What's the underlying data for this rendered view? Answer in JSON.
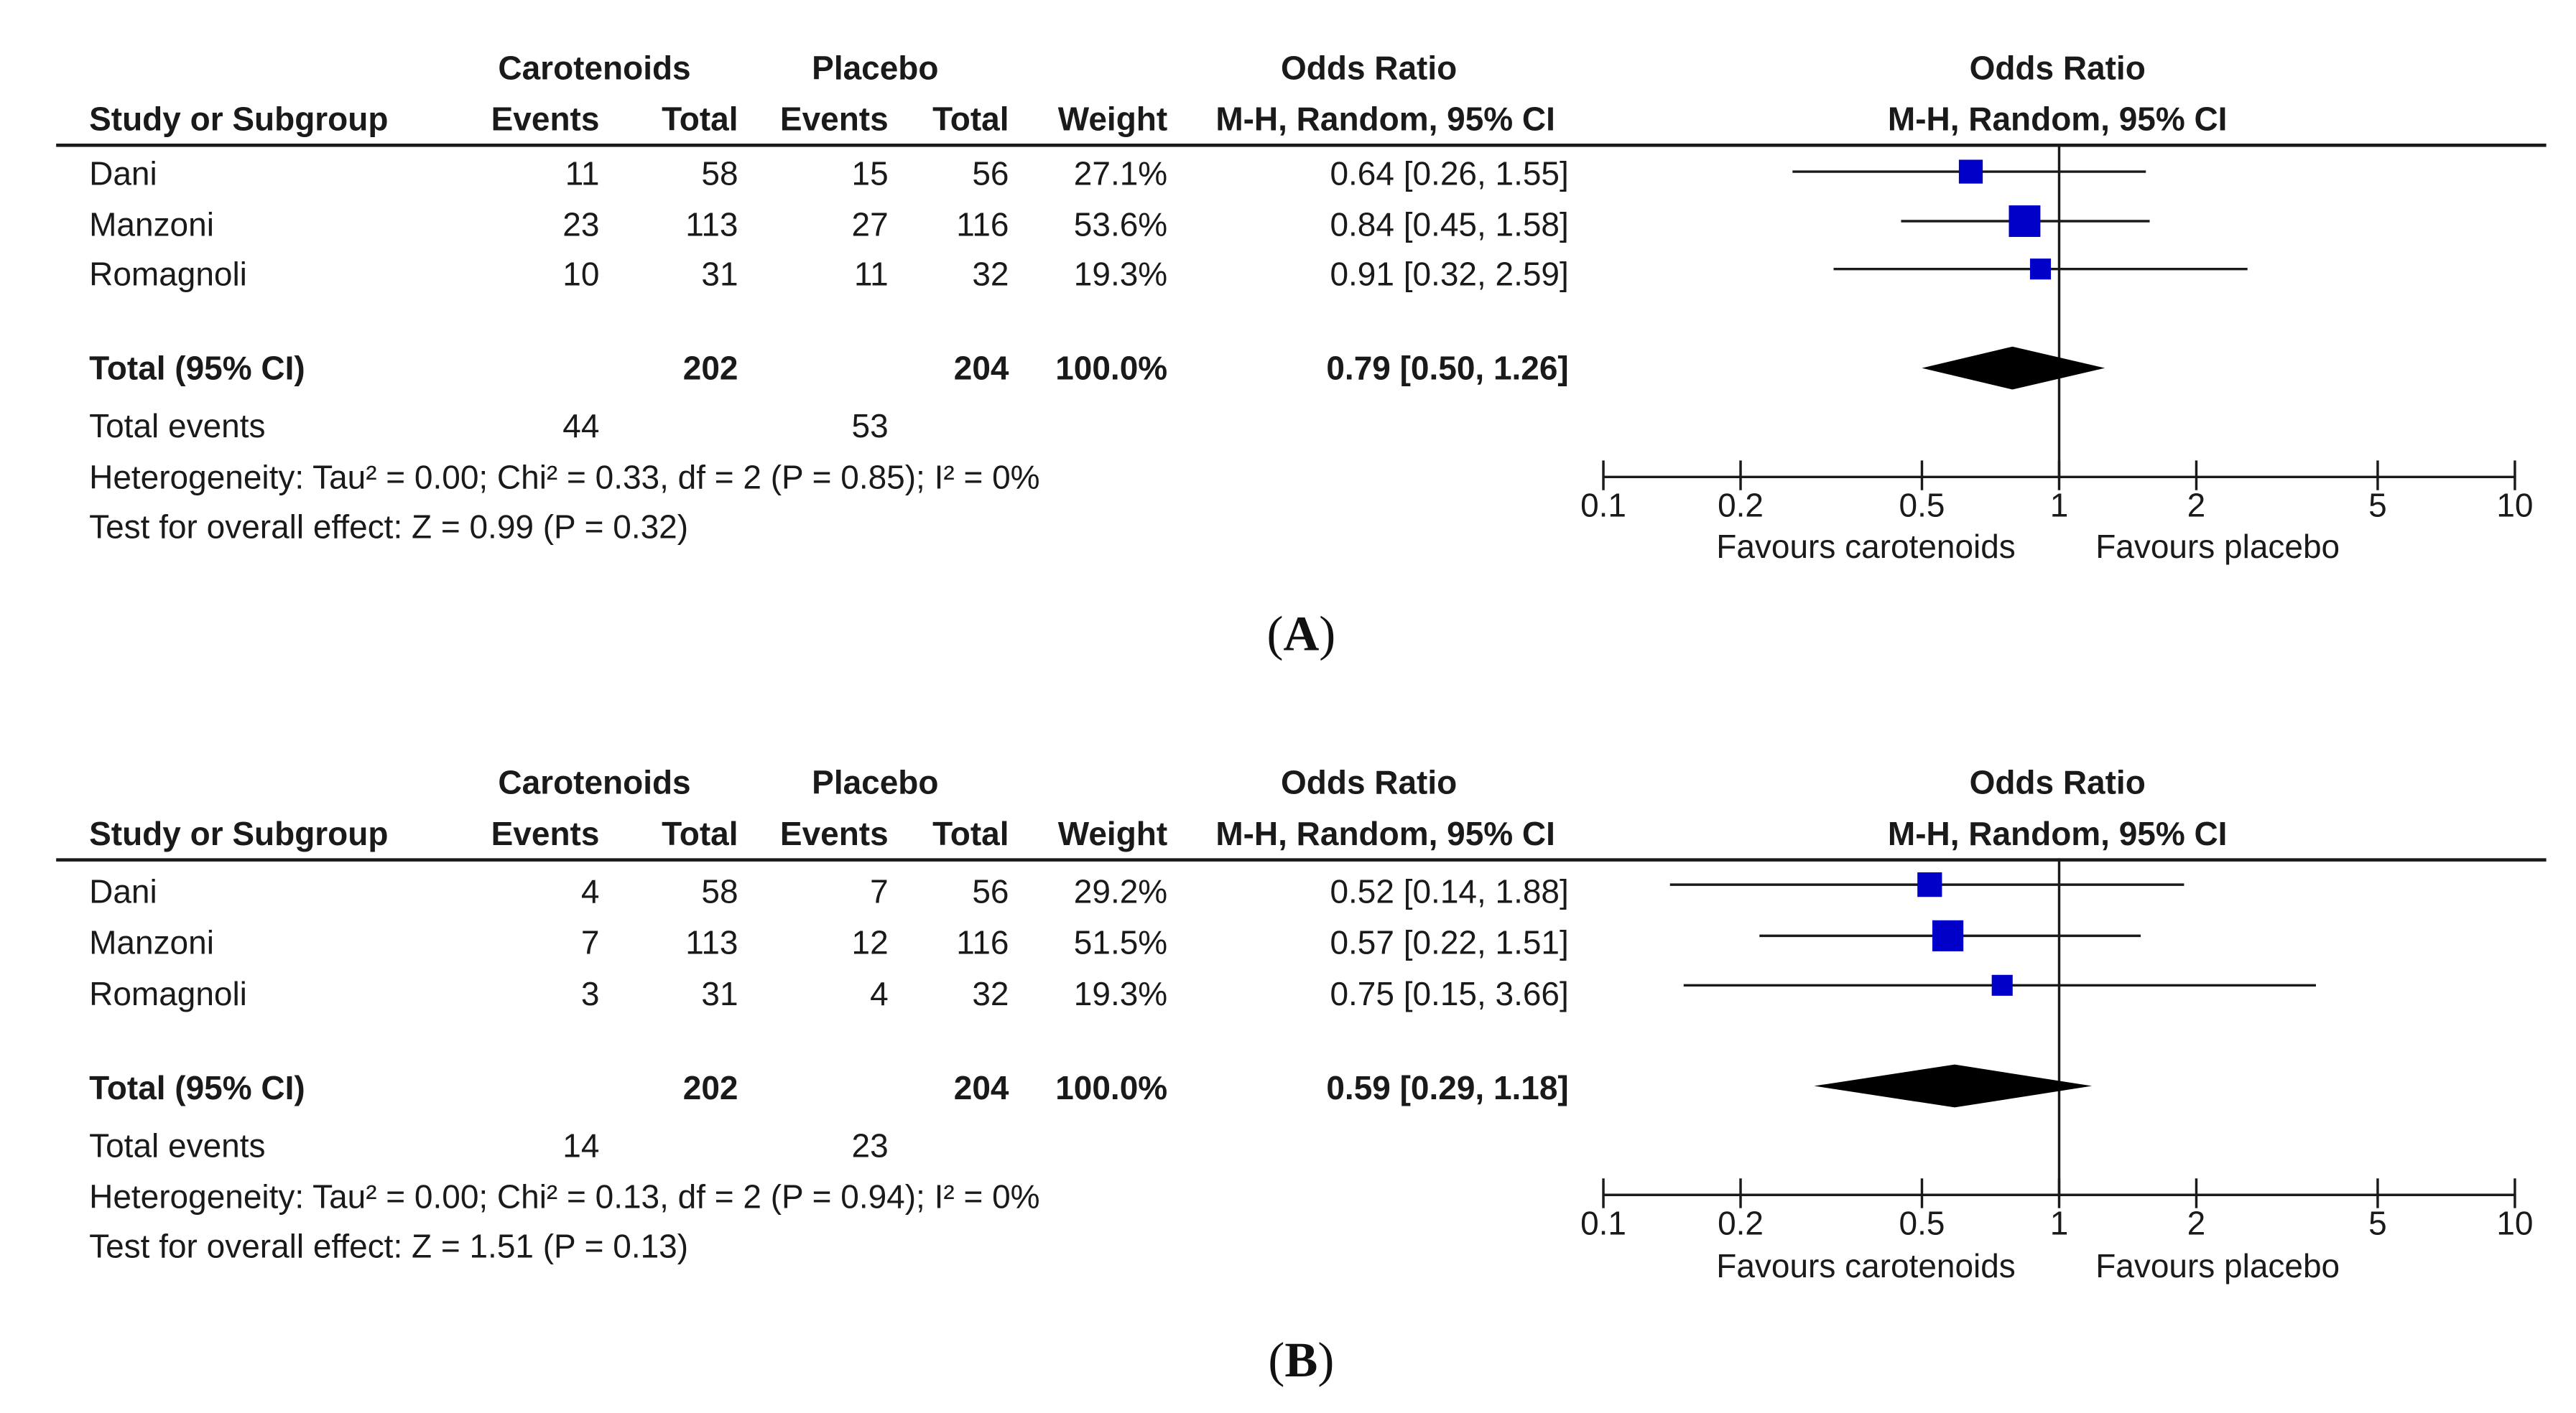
{
  "headers": {
    "study": "Study or Subgroup",
    "group1": "Carotenoids",
    "group2": "Placebo",
    "events": "Events",
    "total": "Total",
    "weight": "Weight",
    "or_title": "Odds Ratio",
    "or_method": "M-H, Random, 95% CI",
    "plot_title": "Odds Ratio",
    "plot_method": "M-H, Random, 95% CI"
  },
  "axis": {
    "ticks": [
      0.1,
      0.2,
      0.5,
      1,
      2,
      5,
      10
    ],
    "tick_labels": [
      "0.1",
      "0.2",
      "0.5",
      "1",
      "2",
      "5",
      "10"
    ],
    "xmin": 0.1,
    "xmax": 10,
    "scale": "log",
    "favours_left": "Favours carotenoids",
    "favours_right": "Favours placebo"
  },
  "colors": {
    "marker": "#0000c8",
    "diamond": "#000000",
    "line": "#1a1a1a"
  },
  "panels": [
    {
      "label_prefix": "(",
      "label": "A",
      "label_suffix": ")",
      "studies": [
        {
          "name": "Dani",
          "e1": "11",
          "t1": "58",
          "e2": "15",
          "t2": "56",
          "weight": "27.1%",
          "ci_text": "0.64 [0.26, 1.55]"
        },
        {
          "name": "Manzoni",
          "e1": "23",
          "t1": "113",
          "e2": "27",
          "t2": "116",
          "weight": "53.6%",
          "ci_text": "0.84 [0.45, 1.58]"
        },
        {
          "name": "Romagnoli",
          "e1": "10",
          "t1": "31",
          "e2": "11",
          "t2": "32",
          "weight": "19.3%",
          "ci_text": "0.91 [0.32, 2.59]"
        }
      ],
      "total": {
        "label": "Total (95% CI)",
        "t1": "202",
        "t2": "204",
        "weight": "100.0%",
        "ci_text": "0.79 [0.50, 1.26]"
      },
      "total_events": {
        "label": "Total events",
        "e1": "44",
        "e2": "53"
      },
      "heterogeneity": "Heterogeneity: Tau² = 0.00; Chi² = 0.33, df = 2 (P = 0.85); I² = 0%",
      "overall": "Test for overall effect: Z = 0.99 (P = 0.32)"
    },
    {
      "label_prefix": "(",
      "label": "B",
      "label_suffix": ")",
      "studies": [
        {
          "name": "Dani",
          "e1": "4",
          "t1": "58",
          "e2": "7",
          "t2": "56",
          "weight": "29.2%",
          "ci_text": "0.52 [0.14, 1.88]"
        },
        {
          "name": "Manzoni",
          "e1": "7",
          "t1": "113",
          "e2": "12",
          "t2": "116",
          "weight": "51.5%",
          "ci_text": "0.57 [0.22, 1.51]"
        },
        {
          "name": "Romagnoli",
          "e1": "3",
          "t1": "31",
          "e2": "4",
          "t2": "32",
          "weight": "19.3%",
          "ci_text": "0.75 [0.15, 3.66]"
        }
      ],
      "total": {
        "label": "Total (95% CI)",
        "t1": "202",
        "t2": "204",
        "weight": "100.0%",
        "ci_text": "0.59 [0.29, 1.18]"
      },
      "total_events": {
        "label": "Total events",
        "e1": "14",
        "e2": "23"
      },
      "heterogeneity": "Heterogeneity: Tau² = 0.00; Chi² = 0.13, df = 2 (P = 0.94); I² = 0%",
      "overall": "Test for overall effect: Z = 1.51 (P = 0.13)"
    }
  ],
  "chart_data": [
    {
      "type": "forest",
      "title": "Odds Ratio (M-H, Random, 95% CI) — panel A",
      "xscale": "log",
      "xlim": [
        0.1,
        10
      ],
      "xticks": [
        0.1,
        0.2,
        0.5,
        1,
        2,
        5,
        10
      ],
      "xlabel_left": "Favours carotenoids",
      "xlabel_right": "Favours placebo",
      "studies": [
        {
          "name": "Dani",
          "or": 0.64,
          "lower": 0.26,
          "upper": 1.55,
          "weight": 27.1
        },
        {
          "name": "Manzoni",
          "or": 0.84,
          "lower": 0.45,
          "upper": 1.58,
          "weight": 53.6
        },
        {
          "name": "Romagnoli",
          "or": 0.91,
          "lower": 0.32,
          "upper": 2.59,
          "weight": 19.3
        }
      ],
      "pooled": {
        "name": "Total (95% CI)",
        "or": 0.79,
        "lower": 0.5,
        "upper": 1.26,
        "weight": 100.0
      }
    },
    {
      "type": "forest",
      "title": "Odds Ratio (M-H, Random, 95% CI) — panel B",
      "xscale": "log",
      "xlim": [
        0.1,
        10
      ],
      "xticks": [
        0.1,
        0.2,
        0.5,
        1,
        2,
        5,
        10
      ],
      "xlabel_left": "Favours carotenoids",
      "xlabel_right": "Favours placebo",
      "studies": [
        {
          "name": "Dani",
          "or": 0.52,
          "lower": 0.14,
          "upper": 1.88,
          "weight": 29.2
        },
        {
          "name": "Manzoni",
          "or": 0.57,
          "lower": 0.22,
          "upper": 1.51,
          "weight": 51.5
        },
        {
          "name": "Romagnoli",
          "or": 0.75,
          "lower": 0.15,
          "upper": 3.66,
          "weight": 19.3
        }
      ],
      "pooled": {
        "name": "Total (95% CI)",
        "or": 0.59,
        "lower": 0.29,
        "upper": 1.18,
        "weight": 100.0
      }
    }
  ]
}
